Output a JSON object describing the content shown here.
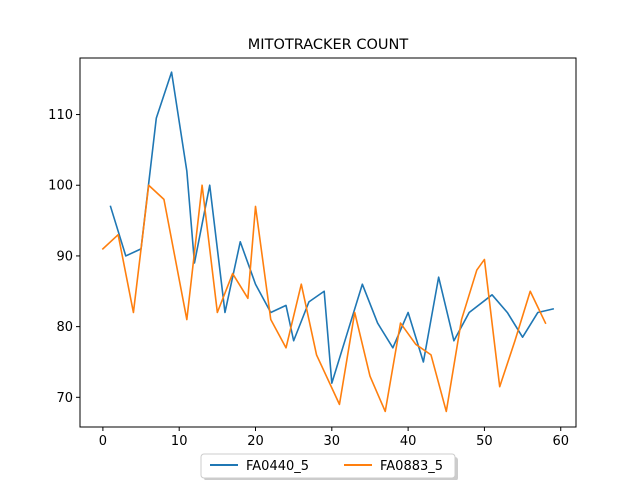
{
  "chart_data": {
    "type": "line",
    "title": "MITOTRACKER COUNT",
    "xlabel": "",
    "ylabel": "",
    "xlim": [
      -3,
      62
    ],
    "ylim": [
      65.8,
      118
    ],
    "xticks": [
      0,
      10,
      20,
      30,
      40,
      50,
      60
    ],
    "yticks": [
      70,
      80,
      90,
      100,
      110
    ],
    "grid": false,
    "legend": {
      "placement": "bottom-center",
      "columns": 2
    },
    "series": [
      {
        "name": "FA0440_5",
        "color": "#1f77b4",
        "x": [
          1,
          3,
          5,
          7,
          9,
          11,
          12,
          14,
          16,
          18,
          20,
          22,
          24,
          25,
          27,
          29,
          30,
          32,
          34,
          36,
          38,
          40,
          42,
          44,
          46,
          48,
          51,
          53,
          55,
          57,
          59
        ],
        "y": [
          97,
          90,
          91,
          109.5,
          116,
          102,
          89,
          100,
          82,
          92,
          86,
          82,
          83,
          78,
          83.5,
          85,
          72,
          79,
          86,
          80.5,
          77,
          82,
          75,
          87,
          78,
          82,
          84.5,
          82,
          78.5,
          82,
          82.5
        ]
      },
      {
        "name": "FA0883_5",
        "color": "#ff7f0e",
        "x": [
          0,
          2,
          4,
          6,
          8,
          11,
          13,
          15,
          17,
          19,
          20,
          22,
          24,
          26,
          28,
          31,
          33,
          35,
          37,
          39,
          41,
          43,
          45,
          47,
          49,
          50,
          52,
          54,
          56,
          58
        ],
        "y": [
          91,
          93,
          82,
          100,
          98,
          81,
          100,
          82,
          87.5,
          84,
          97,
          81,
          77,
          86,
          76,
          69,
          82,
          73,
          68,
          80.5,
          77.5,
          76,
          68,
          81,
          88,
          89.5,
          71.5,
          78,
          85,
          80.5
        ]
      }
    ]
  }
}
